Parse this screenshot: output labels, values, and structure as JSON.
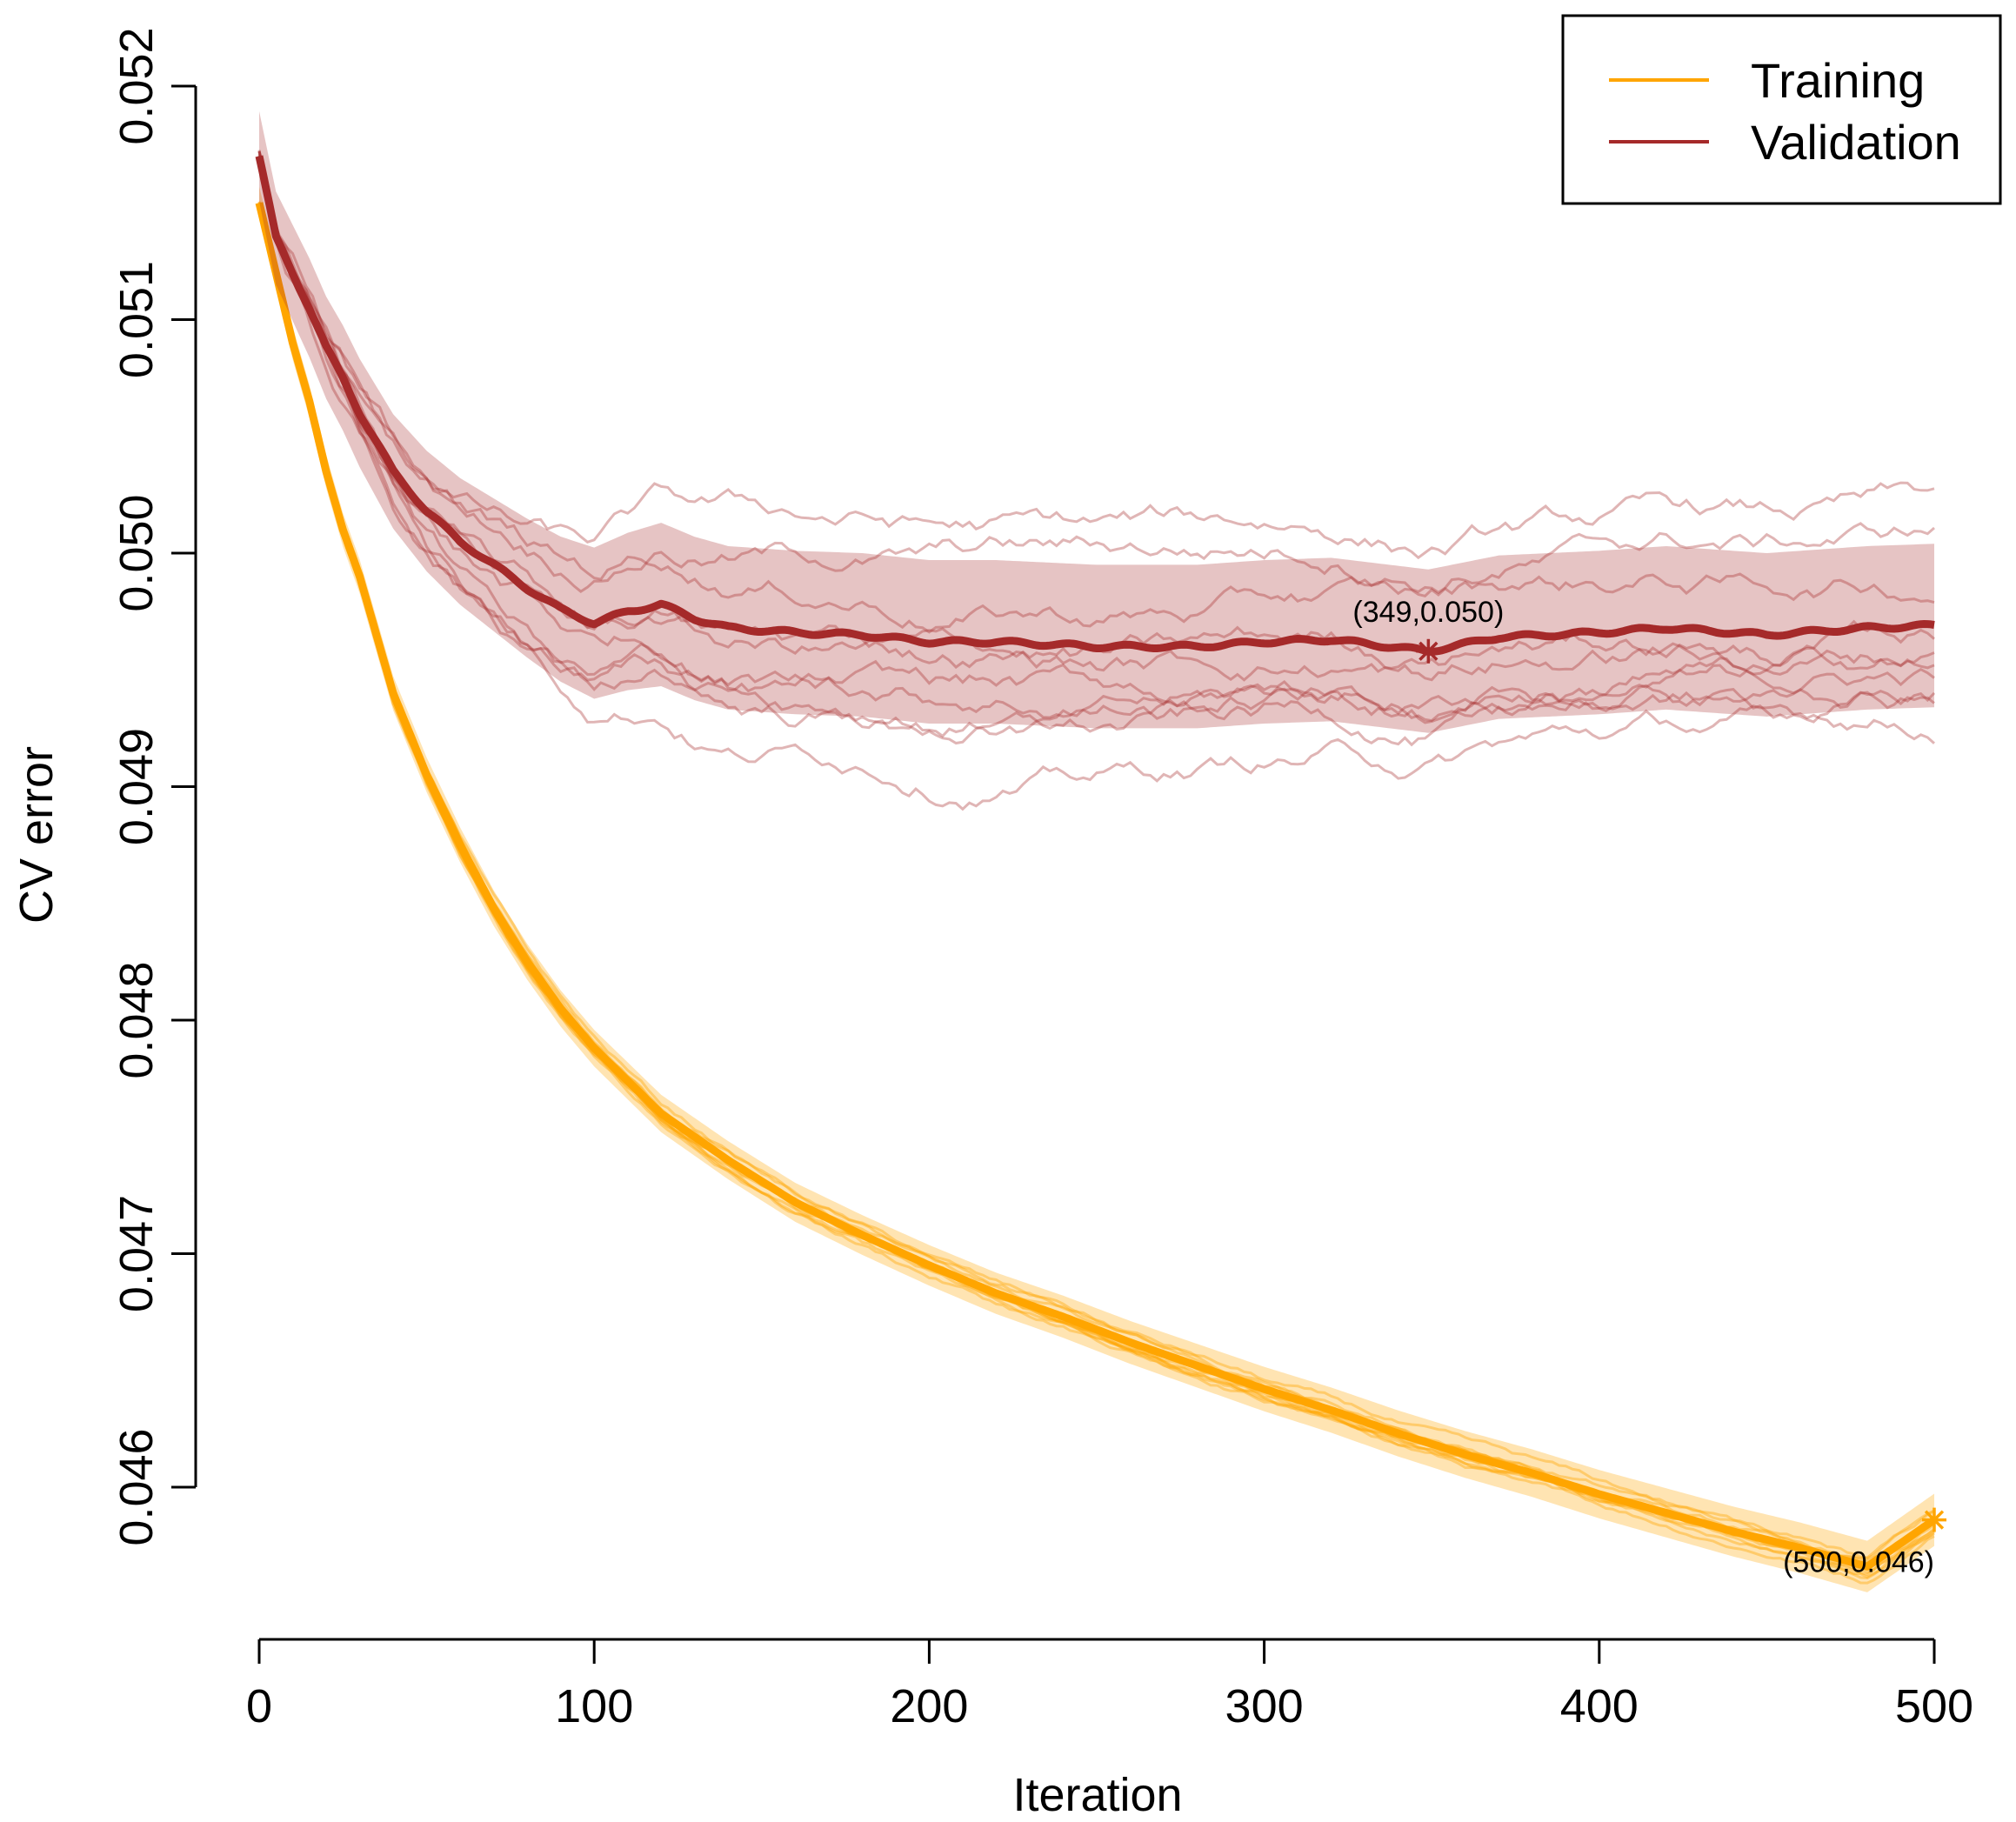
{
  "chart_data": {
    "type": "line",
    "title": "",
    "xlabel": "Iteration",
    "ylabel": "CV error",
    "xlim": [
      0,
      500
    ],
    "ylim": [
      0.0456,
      0.0522
    ],
    "xticks": [
      0,
      100,
      200,
      300,
      400,
      500
    ],
    "xtick_labels": [
      "0",
      "100",
      "200",
      "300",
      "400",
      "500"
    ],
    "yticks": [
      0.046,
      0.047,
      0.048,
      0.049,
      0.05,
      0.051,
      0.052
    ],
    "ytick_labels": [
      "0.046",
      "0.047",
      "0.048",
      "0.049",
      "0.050",
      "0.051",
      "0.052"
    ],
    "grid": false,
    "legend_position": "top-right",
    "colors": {
      "training": "#FFA500",
      "validation": "#A52A2A"
    },
    "series": [
      {
        "name": "Training",
        "color": "#FFA500",
        "x": [
          0,
          5,
          10,
          15,
          20,
          25,
          30,
          40,
          50,
          60,
          70,
          80,
          90,
          100,
          120,
          140,
          160,
          180,
          200,
          220,
          240,
          260,
          280,
          300,
          320,
          340,
          360,
          380,
          400,
          420,
          440,
          460,
          480,
          500
        ],
        "mean": [
          0.0515,
          0.0512,
          0.0509,
          0.05065,
          0.05035,
          0.0501,
          0.0499,
          0.0494,
          0.04905,
          0.04875,
          0.04848,
          0.04825,
          0.04805,
          0.04788,
          0.0476,
          0.0474,
          0.04722,
          0.04708,
          0.04695,
          0.04683,
          0.04673,
          0.04662,
          0.04652,
          0.04642,
          0.04633,
          0.04623,
          0.04614,
          0.04606,
          0.04597,
          0.04589,
          0.04581,
          0.04574,
          0.04566,
          0.04586
        ],
        "band": 7e-05,
        "folds": 10
      },
      {
        "name": "Validation",
        "color": "#A52A2A",
        "x": [
          0,
          5,
          10,
          15,
          20,
          25,
          30,
          40,
          50,
          60,
          70,
          80,
          90,
          100,
          110,
          120,
          130,
          140,
          150,
          160,
          180,
          200,
          220,
          250,
          280,
          300,
          320,
          349,
          370,
          400,
          420,
          450,
          480,
          500
        ],
        "mean": [
          0.0517,
          0.05135,
          0.0512,
          0.05105,
          0.05088,
          0.05075,
          0.0506,
          0.05035,
          0.05018,
          0.05005,
          0.04995,
          0.04985,
          0.04976,
          0.0497,
          0.04975,
          0.04978,
          0.04972,
          0.04968,
          0.04967,
          0.04966,
          0.04965,
          0.04962,
          0.04962,
          0.0496,
          0.0496,
          0.04962,
          0.04963,
          0.04958,
          0.04964,
          0.04966,
          0.04968,
          0.04965,
          0.04968,
          0.04969
        ],
        "band": 0.00035,
        "folds": 10
      }
    ],
    "annotations": [
      {
        "series": "Validation",
        "x": 349,
        "y": 0.04958,
        "label": "(349,0.050)",
        "position": "above"
      },
      {
        "series": "Training",
        "x": 500,
        "y": 0.04586,
        "label": "(500,0.046)",
        "position": "below-left"
      }
    ]
  }
}
